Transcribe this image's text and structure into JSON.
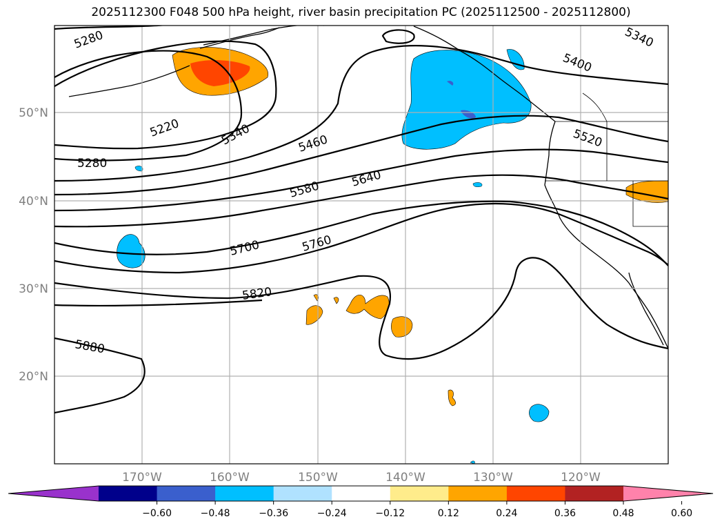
{
  "title": "2025112300 F048 500 hPa height, river basin precipitation PC (2025112500 - 2025112800)",
  "lat_labels": [
    "50°N",
    "40°N",
    "30°N",
    "20°N"
  ],
  "lon_labels": [
    "170°W",
    "160°W",
    "150°W",
    "140°W",
    "130°W",
    "120°W"
  ],
  "contour_labels": [
    "5280",
    "5340",
    "5400",
    "5340",
    "5220",
    "5280",
    "5460",
    "5520",
    "5580",
    "5640",
    "5700",
    "5760",
    "5820",
    "5880"
  ],
  "colorbar": {
    "ticks": [
      "−0.60",
      "−0.48",
      "−0.36",
      "−0.24",
      "−0.12",
      "0.12",
      "0.24",
      "0.36",
      "0.48",
      "0.60"
    ],
    "colors": [
      "#9932cc",
      "#00008b",
      "#3a5fcd",
      "#00bfff",
      "#b0e2ff",
      "#ffffff",
      "#ffec8b",
      "#ffa500",
      "#ff4500",
      "#b22222",
      "#ff82ab"
    ]
  }
}
